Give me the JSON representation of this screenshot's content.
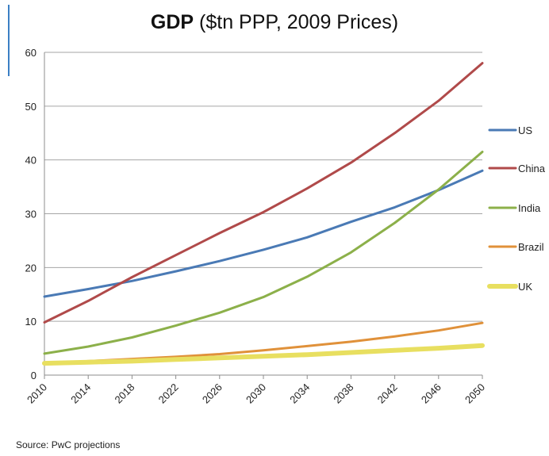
{
  "title_bold": "GDP",
  "title_rest": "($tn PPP, 2009 Prices)",
  "source": "Source: PwC projections",
  "chart_data": {
    "type": "line",
    "title": "GDP ($tn PPP, 2009 Prices)",
    "xlabel": "",
    "ylabel": "",
    "ylim": [
      0,
      60
    ],
    "xlim": [
      2010,
      2050
    ],
    "grid": true,
    "legend_position": "right",
    "yticks": [
      "0",
      "10",
      "20",
      "30",
      "40",
      "50",
      "60"
    ],
    "xticks": [
      "2010",
      "2014",
      "2018",
      "2022",
      "2026",
      "2030",
      "2034",
      "2038",
      "2042",
      "2046",
      "2050"
    ],
    "x": [
      2010,
      2014,
      2018,
      2022,
      2026,
      2030,
      2034,
      2038,
      2042,
      2046,
      2050
    ],
    "series": [
      {
        "name": "US",
        "color": "#4a7ab5",
        "values": [
          14.6,
          16.0,
          17.5,
          19.3,
          21.2,
          23.3,
          25.6,
          28.5,
          31.2,
          34.4,
          38.0
        ]
      },
      {
        "name": "China",
        "color": "#b04a4a",
        "values": [
          9.8,
          13.8,
          18.2,
          22.3,
          26.4,
          30.3,
          34.7,
          39.5,
          45.0,
          51.0,
          58.0
        ]
      },
      {
        "name": "India",
        "color": "#8cb04a",
        "values": [
          4.0,
          5.3,
          7.0,
          9.2,
          11.6,
          14.5,
          18.3,
          22.8,
          28.3,
          34.5,
          41.5
        ]
      },
      {
        "name": "Brazil",
        "color": "#e0913a",
        "values": [
          2.2,
          2.6,
          3.0,
          3.4,
          3.9,
          4.6,
          5.4,
          6.2,
          7.2,
          8.3,
          9.7
        ]
      },
      {
        "name": "UK",
        "color": "#e8df60",
        "values": [
          2.2,
          2.4,
          2.6,
          2.9,
          3.2,
          3.5,
          3.8,
          4.2,
          4.6,
          5.0,
          5.5
        ]
      }
    ]
  }
}
